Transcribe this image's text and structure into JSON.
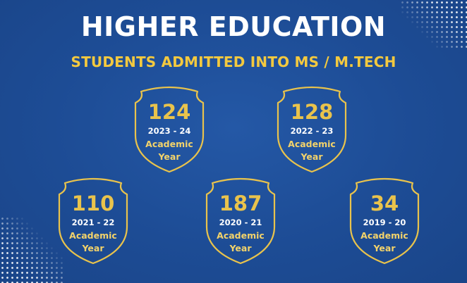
{
  "title": "HIGHER EDUCATION",
  "subtitle": "STUDENTS ADMITTED INTO MS / M.TECH",
  "colors": {
    "background": "#1f4f99",
    "accent": "#f3c93f",
    "title": "#ffffff"
  },
  "badges": [
    {
      "count": "124",
      "years": "2023 - 24",
      "line1": "Academic",
      "line2": "Year"
    },
    {
      "count": "128",
      "years": "2022 - 23",
      "line1": "Academic",
      "line2": "Year"
    },
    {
      "count": "110",
      "years": "2021 - 22",
      "line1": "Academic",
      "line2": "Year"
    },
    {
      "count": "187",
      "years": "2020 - 21",
      "line1": "Academic",
      "line2": "Year"
    },
    {
      "count": "34",
      "years": "2019 - 20",
      "line1": "Academic",
      "line2": "Year"
    }
  ]
}
